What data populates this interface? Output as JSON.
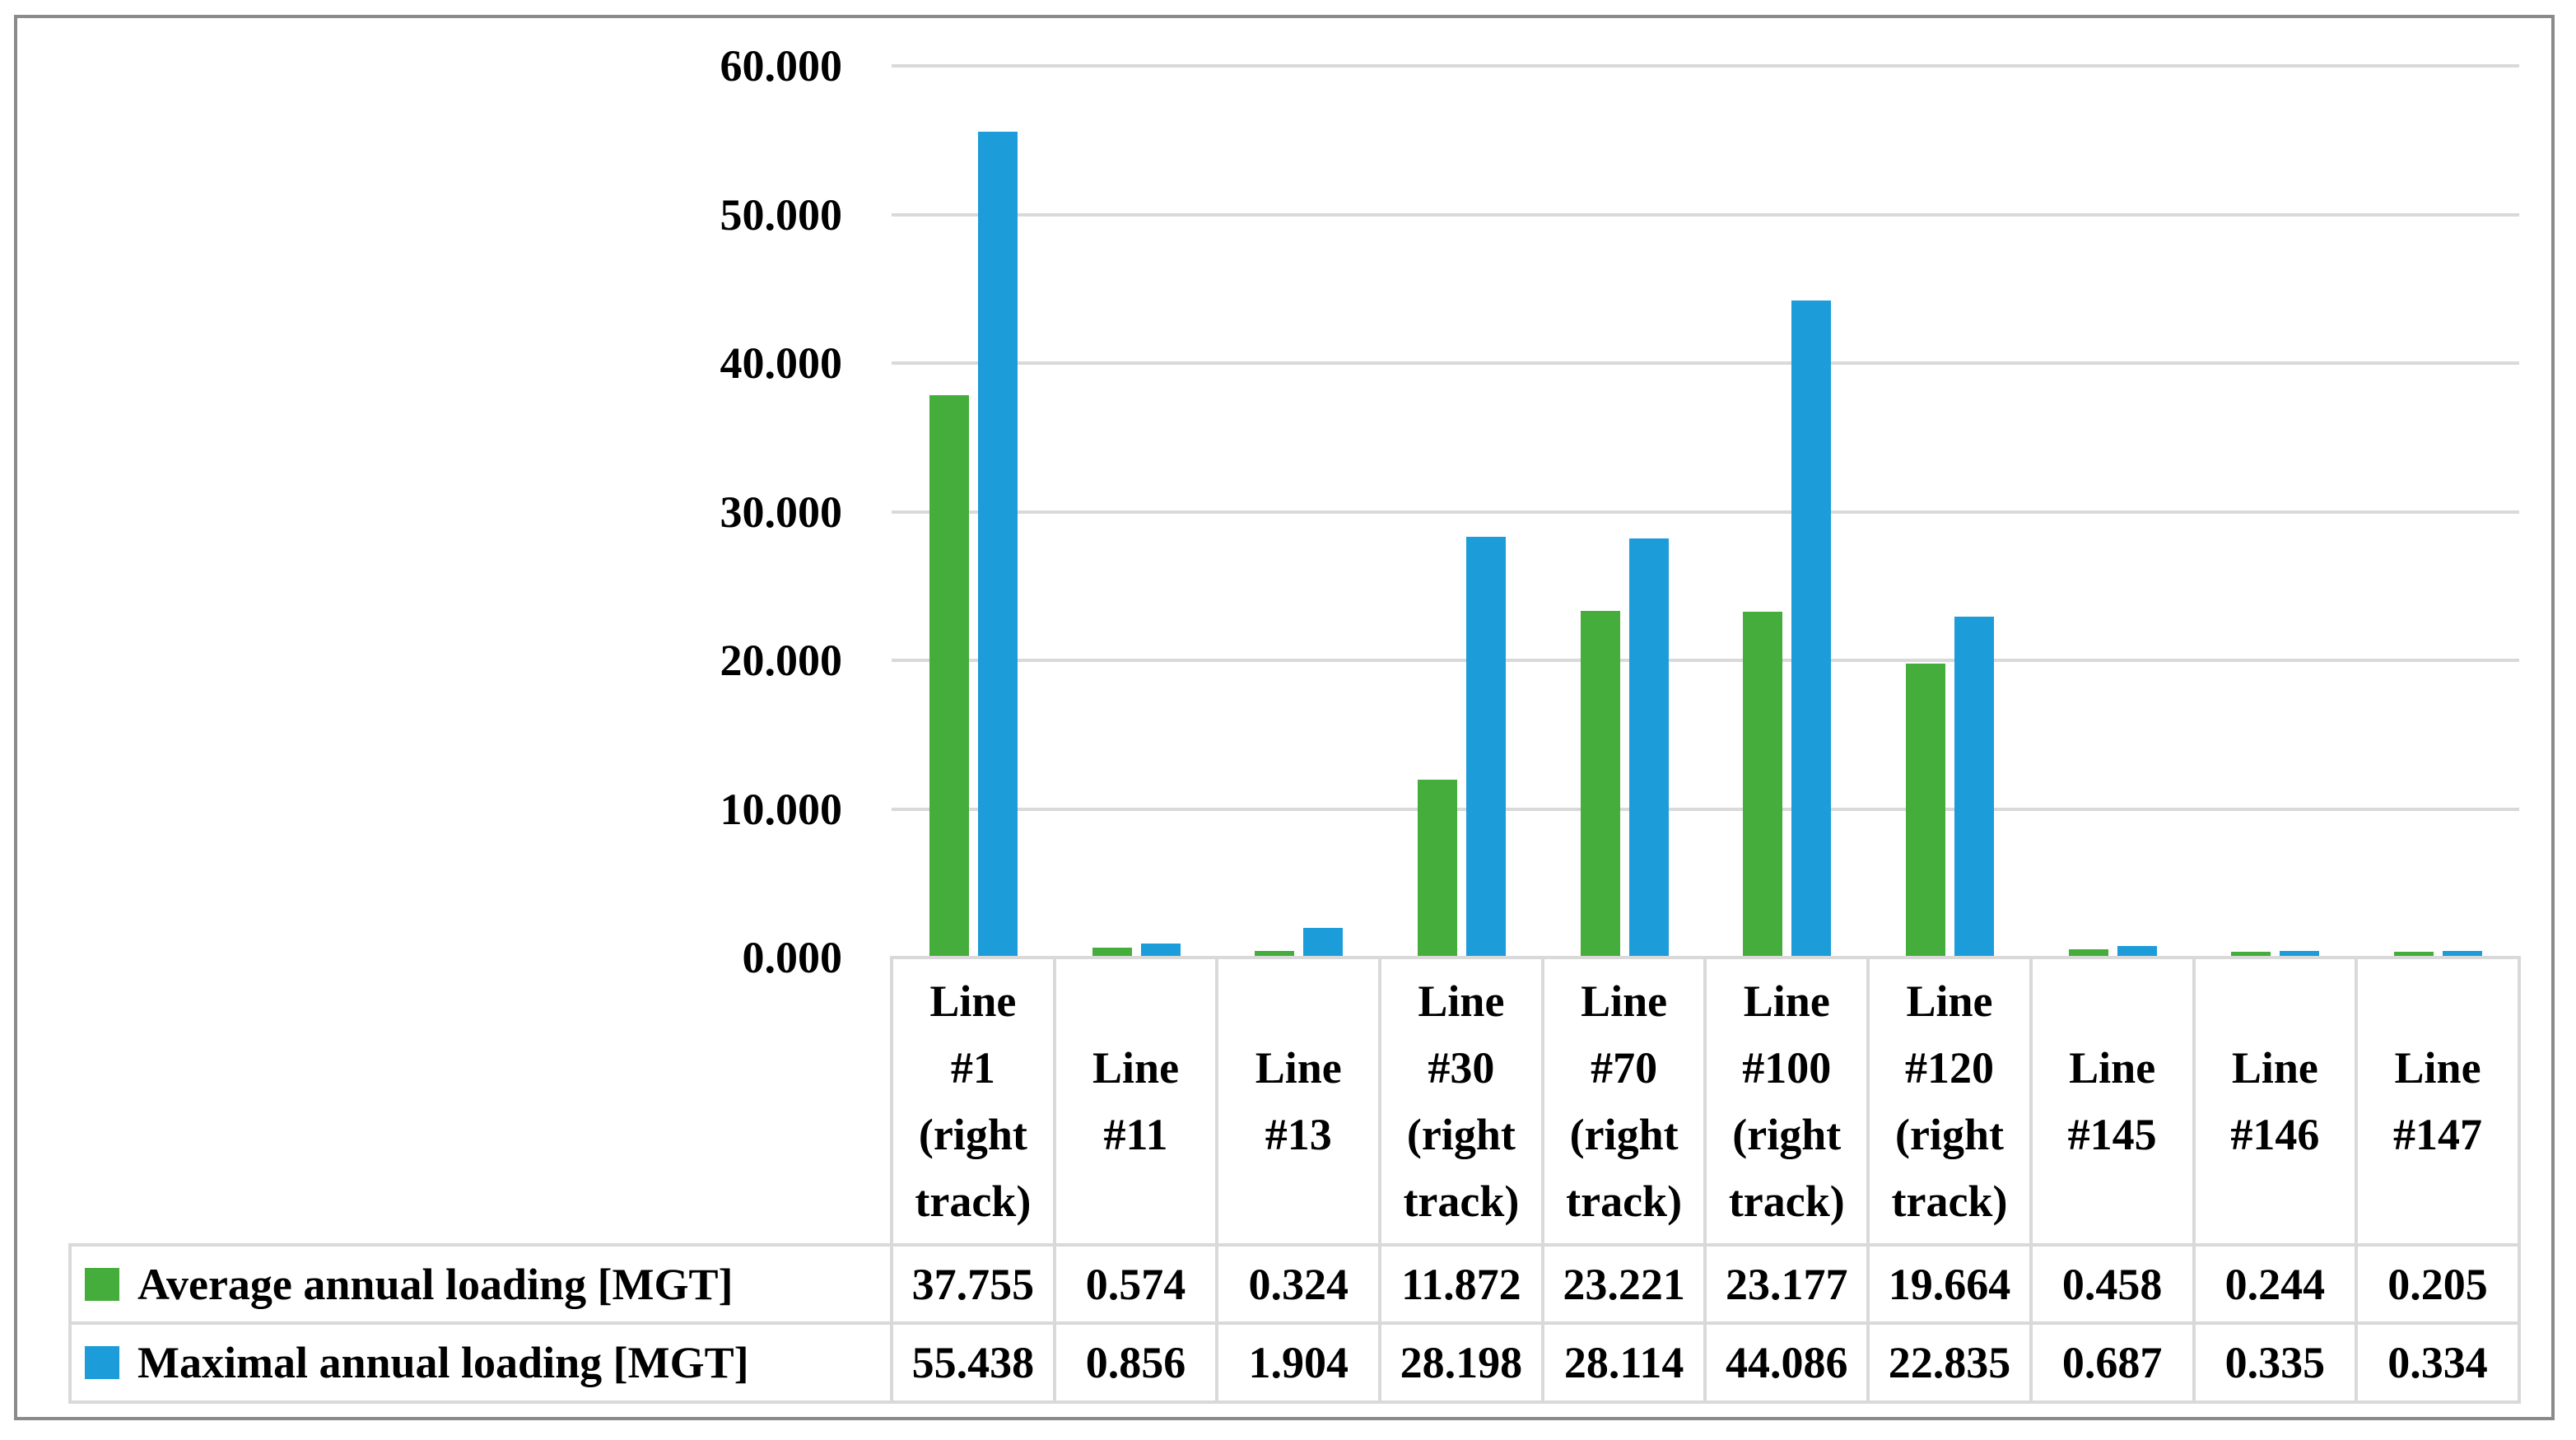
{
  "figure": {
    "background_color": "#ffffff",
    "border_color": "#8A8A8A",
    "gridline_color": "#D9D9D9",
    "text_color": "#000000"
  },
  "chart_data": {
    "type": "bar",
    "title": "",
    "xlabel": "",
    "ylabel": "",
    "categories": [
      "Line #1 (right track)",
      "Line #11",
      "Line #13",
      "Line #30 (right track)",
      "Line #70 (right track)",
      "Line #100 (right track)",
      "Line #120 (right track)",
      "Line #145",
      "Line #146",
      "Line #147"
    ],
    "series": [
      {
        "name": "Average annual loading [MGT]",
        "color": "#45AD3B",
        "values": [
          37.755,
          0.574,
          0.324,
          11.872,
          23.221,
          23.177,
          19.664,
          0.458,
          0.244,
          0.205
        ]
      },
      {
        "name": "Maximal annual loading [MGT]",
        "color": "#1C9CD9",
        "values": [
          55.438,
          0.856,
          1.904,
          28.198,
          28.114,
          44.086,
          22.835,
          0.687,
          0.335,
          0.334
        ]
      }
    ],
    "ylim": [
      0,
      60
    ],
    "yticks": [
      0,
      10,
      20,
      30,
      40,
      50,
      60
    ],
    "ytick_labels": [
      "0.000",
      "10.000",
      "20.000",
      "30.000",
      "40.000",
      "50.000",
      "60.000"
    ],
    "grid": true,
    "legend_position": "data-table-left-column"
  },
  "data_table": {
    "rows": [
      {
        "label": "Average annual loading [MGT]",
        "swatch_color": "#45AD3B",
        "values": [
          "37.755",
          "0.574",
          "0.324",
          "11.872",
          "23.221",
          "23.177",
          "19.664",
          "0.458",
          "0.244",
          "0.205"
        ]
      },
      {
        "label": "Maximal annual loading [MGT]",
        "swatch_color": "#1C9CD9",
        "values": [
          "55.438",
          "0.856",
          "1.904",
          "28.198",
          "28.114",
          "44.086",
          "22.835",
          "0.687",
          "0.335",
          "0.334"
        ]
      }
    ]
  }
}
